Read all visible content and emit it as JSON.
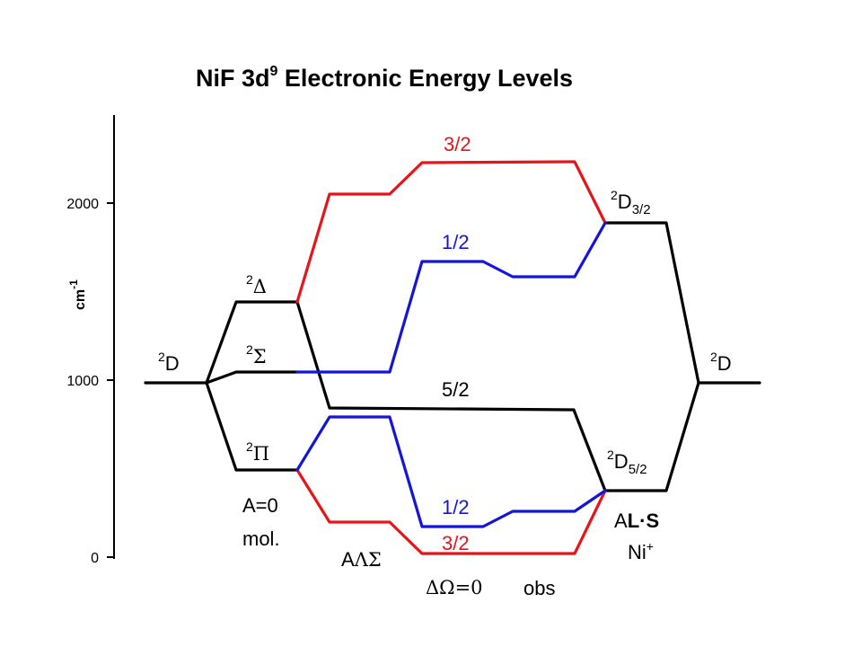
{
  "title": {
    "main": "NiF 3d",
    "sup": "9",
    "rest": " Electronic Energy Levels"
  },
  "axis": {
    "unit_base": "cm",
    "unit_exp": "-1",
    "ticks": [
      "2000",
      "1000",
      "0"
    ],
    "range": [
      0,
      2500
    ]
  },
  "levels": {
    "left_2D": {
      "sup": "2",
      "base": "D"
    },
    "right_2D": {
      "sup": "2",
      "base": "D"
    },
    "delta": {
      "sup": "2",
      "sym": "Δ"
    },
    "sigma": {
      "sup": "2",
      "sym": "Σ"
    },
    "pi": {
      "sup": "2",
      "sym": "Π"
    },
    "D32": {
      "sup": "2",
      "base": "D",
      "sub": "3/2"
    },
    "D52": {
      "sup": "2",
      "base": "D",
      "sub": "5/2"
    }
  },
  "omega_labels": {
    "top_red": "3/2",
    "upper_blue": "1/2",
    "middle_black": "5/2",
    "lower_blue": "1/2",
    "bottom_red": "3/2"
  },
  "column_labels": {
    "mol_line1": "A=0",
    "mol_line2": "mol.",
    "als_prefix": "A",
    "als_greek": "ΛΣ",
    "delta_omega": "ΔΩ=0",
    "obs": "obs",
    "ion_A": "A",
    "ion_LS": "L·S",
    "ion_name": "Ni",
    "ion_charge": "+"
  },
  "colors": {
    "black": "#000000",
    "red": "#e8141a",
    "blue": "#1414dc"
  }
}
